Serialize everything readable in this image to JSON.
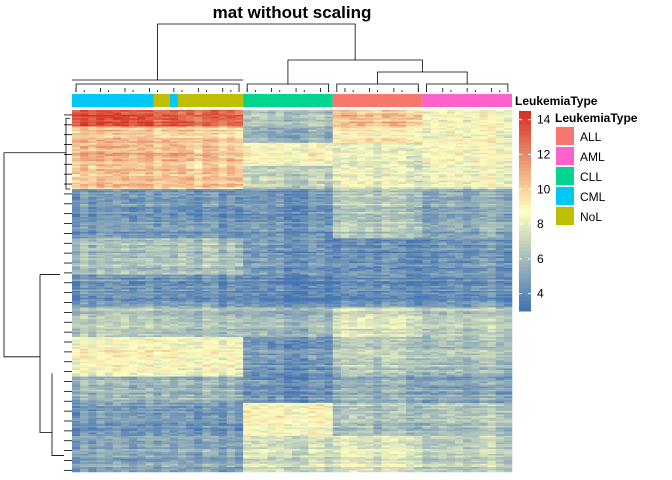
{
  "chart_data": {
    "type": "heatmap",
    "title": "mat without scaling",
    "annotation": {
      "name": "LeukemiaType",
      "groups": [
        {
          "name": "CML",
          "columns": 10
        },
        {
          "name": "NoL",
          "columns": 2
        },
        {
          "name": "CML",
          "columns": 1
        },
        {
          "name": "NoL",
          "columns": 8
        },
        {
          "name": "CLL",
          "columns": 11
        },
        {
          "name": "ALL",
          "columns": 11
        },
        {
          "name": "AML",
          "columns": 11
        }
      ]
    },
    "legend": {
      "title": "LeukemiaType",
      "entries": [
        {
          "label": "ALL",
          "color": "#F8766D"
        },
        {
          "label": "AML",
          "color": "#FF61CC"
        },
        {
          "label": "CLL",
          "color": "#00D58F"
        },
        {
          "label": "CML",
          "color": "#00C8F5"
        },
        {
          "label": "NoL",
          "color": "#BFBF00"
        }
      ],
      "placement": "right"
    },
    "color_scale": {
      "title": "LeukemiaType",
      "ticks": [
        4,
        6,
        8,
        10,
        12,
        14
      ],
      "range": [
        3,
        14.5
      ],
      "stops": [
        {
          "value": 3,
          "color": "#4575B4"
        },
        {
          "value": 8.75,
          "color": "#FFFFBF"
        },
        {
          "value": 14.5,
          "color": "#D73027"
        }
      ]
    },
    "n_rows": 220,
    "n_columns": 54,
    "row_blocks": [
      {
        "rows": 10,
        "means": {
          "CML": 13.3,
          "NoL": 12.8,
          "CLL": 6.0,
          "ALL": 10.2,
          "AML": 8.5
        }
      },
      {
        "rows": 10,
        "means": {
          "CML": 10.2,
          "NoL": 10.0,
          "CLL": 5.2,
          "ALL": 9.0,
          "AML": 8.6
        }
      },
      {
        "rows": 14,
        "means": {
          "CML": 10.6,
          "NoL": 10.4,
          "CLL": 8.6,
          "ALL": 8.0,
          "AML": 8.8
        }
      },
      {
        "rows": 14,
        "means": {
          "CML": 10.1,
          "NoL": 10.2,
          "CLL": 6.5,
          "ALL": 7.8,
          "AML": 8.2
        }
      },
      {
        "rows": 30,
        "means": {
          "CML": 4.4,
          "NoL": 4.5,
          "CLL": 4.3,
          "ALL": 6.4,
          "AML": 5.4
        }
      },
      {
        "rows": 22,
        "means": {
          "CML": 5.8,
          "NoL": 6.1,
          "CLL": 4.2,
          "ALL": 3.9,
          "AML": 4.4
        }
      },
      {
        "rows": 20,
        "means": {
          "CML": 4.1,
          "NoL": 4.2,
          "CLL": 3.6,
          "ALL": 3.9,
          "AML": 4.2
        }
      },
      {
        "rows": 18,
        "means": {
          "CML": 6.3,
          "NoL": 6.1,
          "CLL": 5.6,
          "ALL": 7.4,
          "AML": 6.7
        }
      },
      {
        "rows": 24,
        "means": {
          "CML": 8.6,
          "NoL": 8.6,
          "CLL": 4.3,
          "ALL": 6.5,
          "AML": 6.3
        }
      },
      {
        "rows": 16,
        "means": {
          "CML": 5.5,
          "NoL": 5.6,
          "CLL": 4.1,
          "ALL": 5.3,
          "AML": 5.1
        }
      },
      {
        "rows": 20,
        "means": {
          "CML": 4.3,
          "NoL": 4.4,
          "CLL": 8.7,
          "ALL": 6.1,
          "AML": 6.4
        }
      },
      {
        "rows": 22,
        "means": {
          "CML": 4.8,
          "NoL": 5.0,
          "CLL": 7.1,
          "ALL": 7.6,
          "AML": 6.8
        }
      }
    ]
  }
}
